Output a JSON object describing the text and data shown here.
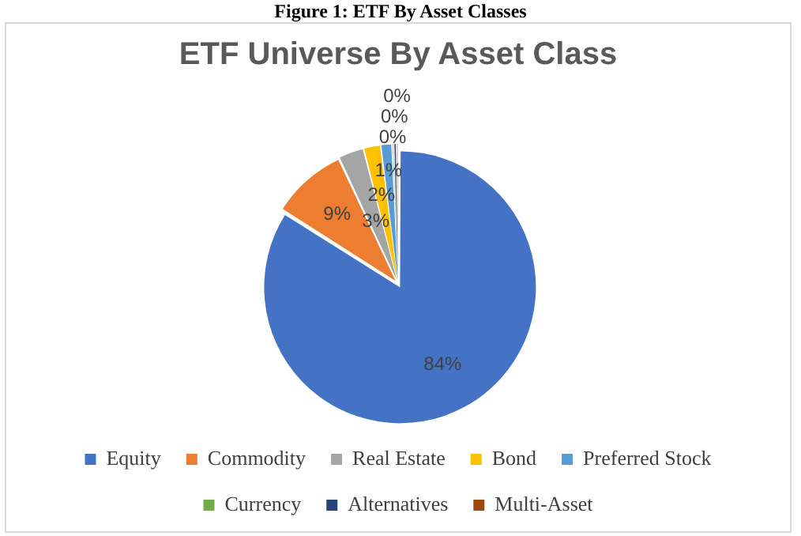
{
  "chart_data": {
    "type": "pie",
    "title": "ETF Universe By Asset Class",
    "annotations": [
      "Figure 1: ETF By Asset Classes"
    ],
    "categories": [
      "Equity",
      "Commodity",
      "Real Estate",
      "Bond",
      "Preferred Stock",
      "Currency",
      "Alternatives",
      "Multi-Asset"
    ],
    "values": [
      84,
      9,
      3,
      2,
      1.3,
      0.2,
      0.3,
      0.2
    ],
    "value_labels": [
      "84%",
      "9%",
      "3%",
      "2%",
      "1%",
      "0%",
      "0%",
      "0%"
    ],
    "colors": [
      "#4472c4",
      "#ed7d31",
      "#a5a5a5",
      "#ffc000",
      "#5b9bd5",
      "#70ad47",
      "#264478",
      "#9e480e"
    ],
    "legend": "bottom"
  }
}
